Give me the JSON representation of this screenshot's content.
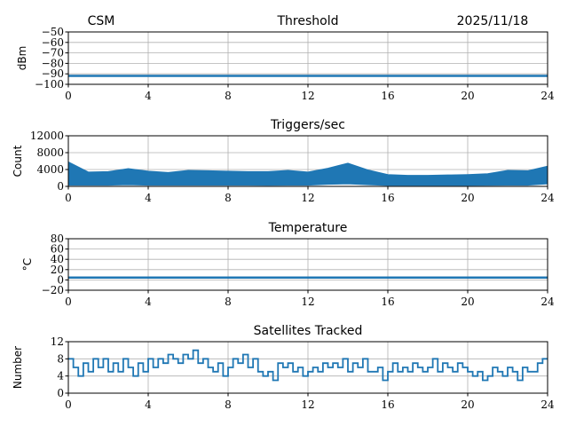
{
  "header": {
    "left": "CSM",
    "right": "2025/11/18"
  },
  "chart_data": [
    {
      "type": "line",
      "title": "Threshold",
      "ylabel": "dBm",
      "xlim": [
        0,
        24
      ],
      "ylim": [
        -100,
        -50
      ],
      "xticks": [
        0,
        4,
        8,
        12,
        16,
        20,
        24
      ],
      "yticks": [
        -100,
        -90,
        -80,
        -70,
        -60,
        -50
      ],
      "ytick_labels": [
        "−100",
        "−90",
        "−80",
        "−70",
        "−60",
        "−50"
      ],
      "grid": true,
      "color": "#1f77b4",
      "x": [
        0,
        24
      ],
      "y": [
        -92,
        -92
      ]
    },
    {
      "type": "area",
      "title": "Triggers/sec",
      "ylabel": "Count",
      "xlim": [
        0,
        24
      ],
      "ylim": [
        0,
        12000
      ],
      "xticks": [
        0,
        4,
        8,
        12,
        16,
        20,
        24
      ],
      "yticks": [
        0,
        4000,
        8000,
        12000
      ],
      "ytick_labels": [
        "0",
        "4000",
        "8000",
        "12000"
      ],
      "grid": true,
      "color": "#1f77b4",
      "x": [
        0,
        1,
        2,
        3,
        4,
        5,
        6,
        7,
        8,
        9,
        10,
        11,
        12,
        13,
        14,
        15,
        16,
        17,
        18,
        19,
        20,
        21,
        22,
        23,
        24
      ],
      "high": [
        5800,
        3400,
        3500,
        4200,
        3600,
        3300,
        3800,
        3700,
        3600,
        3500,
        3500,
        3800,
        3400,
        4300,
        5500,
        3900,
        2800,
        2600,
        2600,
        2700,
        2800,
        3000,
        3800,
        3700,
        4800
      ],
      "low": [
        300,
        300,
        300,
        400,
        300,
        300,
        300,
        300,
        300,
        300,
        250,
        300,
        300,
        500,
        600,
        400,
        250,
        250,
        250,
        250,
        250,
        250,
        300,
        300,
        600
      ]
    },
    {
      "type": "line",
      "title": "Temperature",
      "ylabel": "°C",
      "xlim": [
        0,
        24
      ],
      "ylim": [
        -20,
        80
      ],
      "xticks": [
        0,
        4,
        8,
        12,
        16,
        20,
        24
      ],
      "yticks": [
        -20,
        0,
        20,
        40,
        60,
        80
      ],
      "ytick_labels": [
        "−20",
        "0",
        "20",
        "40",
        "60",
        "80"
      ],
      "grid": true,
      "color": "#1f77b4",
      "x": [
        0,
        24
      ],
      "y": [
        4.5,
        4.5
      ]
    },
    {
      "type": "line",
      "title": "Satellites Tracked",
      "ylabel": "Number",
      "xlim": [
        0,
        24
      ],
      "ylim": [
        0,
        12
      ],
      "xticks": [
        0,
        4,
        8,
        12,
        16,
        20,
        24
      ],
      "yticks": [
        0,
        4,
        8,
        12
      ],
      "ytick_labels": [
        "0",
        "4",
        "8",
        "12"
      ],
      "grid": true,
      "color": "#1f77b4",
      "x_step_hours": 0.25,
      "y": [
        8,
        6,
        4,
        7,
        5,
        8,
        6,
        8,
        5,
        7,
        5,
        8,
        6,
        4,
        7,
        5,
        8,
        6,
        8,
        7,
        9,
        8,
        7,
        9,
        8,
        10,
        7,
        8,
        6,
        5,
        7,
        4,
        6,
        8,
        7,
        9,
        6,
        8,
        5,
        4,
        5,
        3,
        7,
        6,
        7,
        5,
        6,
        4,
        5,
        6,
        5,
        7,
        6,
        7,
        6,
        8,
        5,
        7,
        6,
        8,
        5,
        5,
        6,
        3,
        5,
        7,
        5,
        6,
        5,
        7,
        6,
        5,
        6,
        8,
        5,
        7,
        6,
        5,
        7,
        6,
        5,
        4,
        5,
        3,
        4,
        6,
        5,
        4,
        6,
        5,
        3,
        6,
        5,
        5,
        7,
        8,
        8
      ]
    }
  ]
}
